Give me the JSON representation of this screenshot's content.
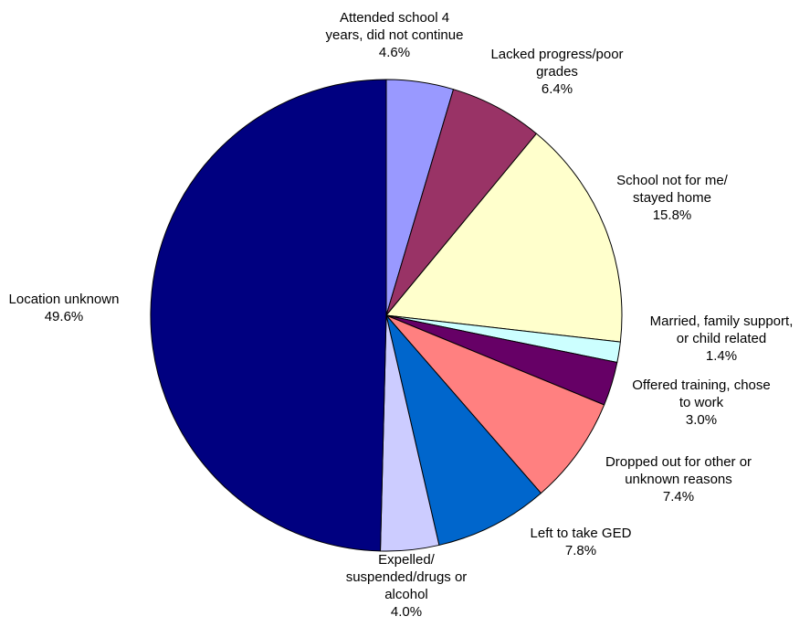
{
  "chart_data": {
    "type": "pie",
    "title": "",
    "start_angle_deg": 0,
    "direction": "clockwise",
    "slices": [
      {
        "name": "Attended school 4 years, did not continue",
        "label_lines": [
          "Attended school 4",
          "years, did not continue",
          "4.6%"
        ],
        "value": 4.6,
        "color": "#9999ff"
      },
      {
        "name": "Lacked progress/poor grades",
        "label_lines": [
          "Lacked progress/poor",
          "grades",
          "6.4%"
        ],
        "value": 6.4,
        "color": "#993366"
      },
      {
        "name": "School not for me/ stayed home",
        "label_lines": [
          "School not for me/",
          "stayed home",
          "15.8%"
        ],
        "value": 15.8,
        "color": "#ffffcc"
      },
      {
        "name": "Married, family support, or child related",
        "label_lines": [
          "Married, family support,",
          "or child related",
          "1.4%"
        ],
        "value": 1.4,
        "color": "#ccffff"
      },
      {
        "name": "Offered training, chose to work",
        "label_lines": [
          "Offered training, chose",
          "to work",
          "3.0%"
        ],
        "value": 3.0,
        "color": "#660066"
      },
      {
        "name": "Dropped out for other or unknown reasons",
        "label_lines": [
          "Dropped out for other or",
          "unknown reasons",
          "7.4%"
        ],
        "value": 7.4,
        "color": "#ff8080"
      },
      {
        "name": "Left to take GED",
        "label_lines": [
          "Left to take GED",
          "7.8%"
        ],
        "value": 7.8,
        "color": "#0066cc"
      },
      {
        "name": "Expelled/ suspended/drugs or alcohol",
        "label_lines": [
          "Expelled/",
          "suspended/drugs or",
          "alcohol",
          "4.0%"
        ],
        "value": 4.0,
        "color": "#ccccff"
      },
      {
        "name": "Location unknown",
        "label_lines": [
          "Location unknown",
          "49.6%"
        ],
        "value": 49.6,
        "color": "#000080"
      }
    ]
  }
}
